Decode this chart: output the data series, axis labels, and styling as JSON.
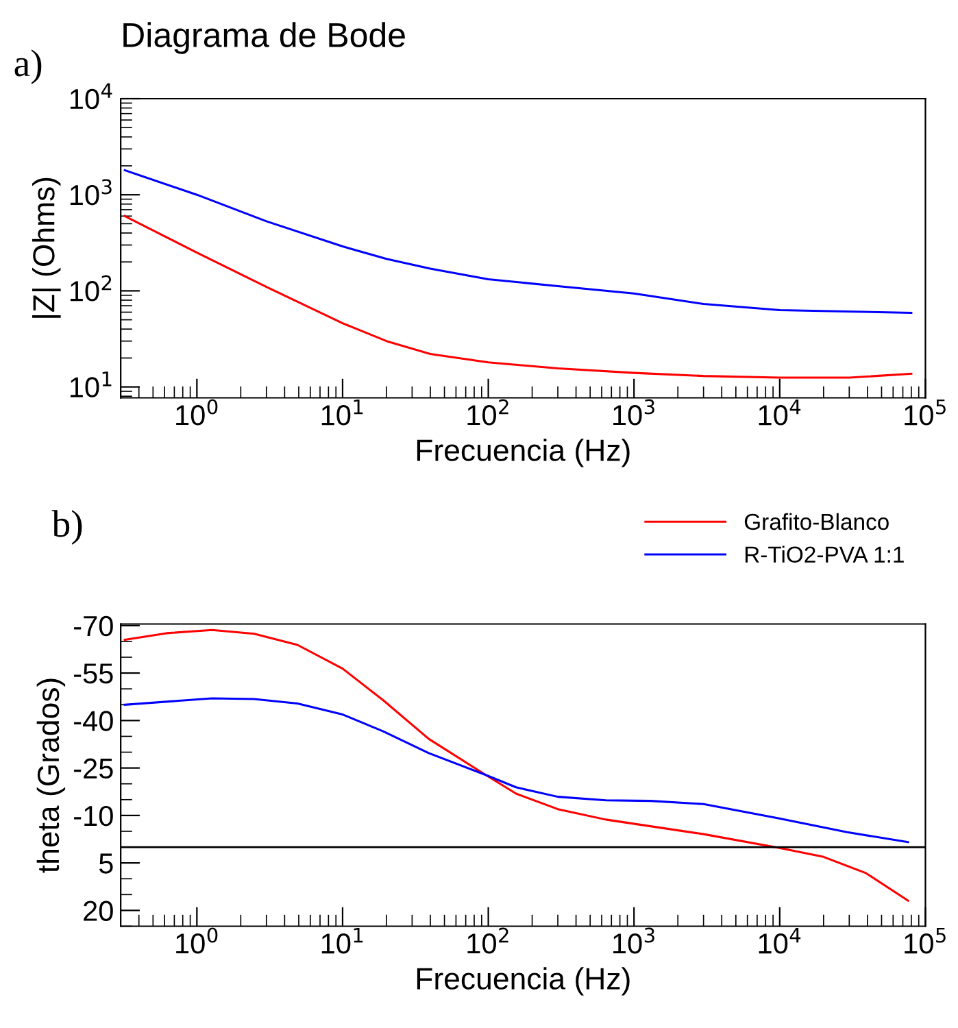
{
  "chart_data": [
    {
      "type": "line",
      "title": "Diagrama de Bode",
      "xlabel": "Frecuencia (Hz)",
      "ylabel": "|Z| (Ohms)",
      "log": "xy",
      "grid": false,
      "legend": false,
      "annotations": [
        "a)"
      ],
      "xlim": [
        0.3,
        100000
      ],
      "ylim": [
        7.7,
        10000
      ],
      "xticks": [
        {
          "value": 1,
          "label": "10$^{0}$"
        },
        {
          "value": 10,
          "label": "10$^{1}$"
        },
        {
          "value": 100,
          "label": "10$^{2}$"
        },
        {
          "value": 1000,
          "label": "10$^{3}$"
        },
        {
          "value": 10000,
          "label": "10$^{4}$"
        },
        {
          "value": 100000,
          "label": "10$^{5}$"
        }
      ],
      "yticks": [
        {
          "value": 10,
          "label": "10$^{1}$"
        },
        {
          "value": 100,
          "label": "10$^{2}$"
        },
        {
          "value": 1000,
          "label": "10$^{3}$"
        },
        {
          "value": 10000,
          "label": "10$^{4}$"
        }
      ],
      "series": [
        {
          "color": "#ff0000",
          "x": [
            0.32,
            1,
            3,
            10,
            20,
            40,
            100,
            300,
            1000,
            3000,
            10000,
            30000,
            80000
          ],
          "values": [
            600,
            250,
            110,
            46,
            30,
            22,
            18,
            15.6,
            14,
            13,
            12.5,
            12.5,
            13.7
          ]
        },
        {
          "color": "#0000ff",
          "x": [
            0.32,
            1,
            3,
            10,
            20,
            40,
            100,
            300,
            1000,
            3000,
            10000,
            80000
          ],
          "values": [
            1800,
            1000,
            530,
            290,
            215,
            170,
            132,
            112,
            94,
            73,
            63,
            59
          ]
        }
      ]
    },
    {
      "type": "line",
      "xlabel": "Frecuencia (Hz)",
      "ylabel": "theta (Grados)",
      "log": "x",
      "grid": false,
      "legend": "top right",
      "annotations": [
        "b)"
      ],
      "xlim": [
        0.3,
        100000
      ],
      "ylim": [
        25,
        -70.5
      ],
      "xticks": [
        {
          "value": 1,
          "label": "10$^{0}$"
        },
        {
          "value": 10,
          "label": "10$^{1}$"
        },
        {
          "value": 100,
          "label": "10$^{2}$"
        },
        {
          "value": 1000,
          "label": "10$^{3}$"
        },
        {
          "value": 10000,
          "label": "10$^{4}$"
        },
        {
          "value": 100000,
          "label": "10$^{5}$"
        }
      ],
      "yticks": [
        -70,
        -55,
        -40,
        -25,
        -10,
        5,
        20
      ],
      "ref_lines": [
        {
          "axis": "y",
          "value": 0,
          "color": "#000000",
          "line_style": "solid"
        }
      ],
      "series": [
        {
          "name": "Grafito-Blanco",
          "color": "#ff0000",
          "x": [
            0.32,
            0.62,
            1.27,
            2.47,
            4.9,
            10,
            19,
            39,
            96,
            155,
            300,
            640,
            3000,
            9800,
            20000,
            39000,
            76000
          ],
          "values": [
            -65.5,
            -67.6,
            -68.6,
            -67.4,
            -63.9,
            -56.4,
            -46.4,
            -34.2,
            -22.8,
            -16.9,
            -12,
            -8.7,
            -4.1,
            0.2,
            3.1,
            8.2,
            16.9
          ]
        },
        {
          "name": "R-TiO2-PVA 1:1",
          "color": "#0000ff",
          "x": [
            0.32,
            1.27,
            2.47,
            4.9,
            10,
            19,
            39,
            96,
            155,
            300,
            640,
            1300,
            3000,
            9800,
            29000,
            76000
          ],
          "values": [
            -45,
            -47,
            -46.8,
            -45.4,
            -41.9,
            -36.6,
            -29.7,
            -22.8,
            -18.9,
            -15.9,
            -14.8,
            -14.6,
            -13.6,
            -9.1,
            -4.7,
            -1.6
          ]
        }
      ]
    }
  ]
}
